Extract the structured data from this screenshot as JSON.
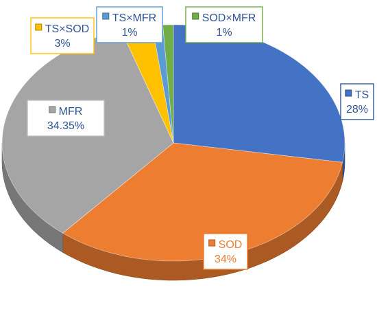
{
  "chart_data": {
    "type": "pie",
    "style": "3d-exploded-perspective",
    "title": "",
    "slices": [
      {
        "name": "TS",
        "label": "28%",
        "value": 28,
        "color": "#4472C4",
        "label_border": "#2F5597",
        "label_text_color": "#2F5597"
      },
      {
        "name": "SOD",
        "label": "34%",
        "value": 34,
        "color": "#ED7D31",
        "label_border": "#ED7D31",
        "label_text_color": "#ED7D31"
      },
      {
        "name": "MFR",
        "label": "34.35%",
        "value": 34.35,
        "color": "#A5A5A5",
        "label_border": "#BFBFBF",
        "label_text_color": "#2F5597"
      },
      {
        "name": "TS×SOD",
        "label": "3%",
        "value": 3,
        "color": "#FFC000",
        "label_border": "#FFC000",
        "label_text_color": "#2F5597"
      },
      {
        "name": "TS×MFR",
        "label": "1%",
        "value": 1,
        "color": "#5B9BD5",
        "label_border": "#5B9BD5",
        "label_text_color": "#2F5597"
      },
      {
        "name": "SOD×MFR",
        "label": "1%",
        "value": 1,
        "color": "#70AD47",
        "label_border": "#70AD47",
        "label_text_color": "#2F5597"
      }
    ],
    "legend": "none",
    "data_labels": "category-name-and-percent-with-legend-key"
  }
}
